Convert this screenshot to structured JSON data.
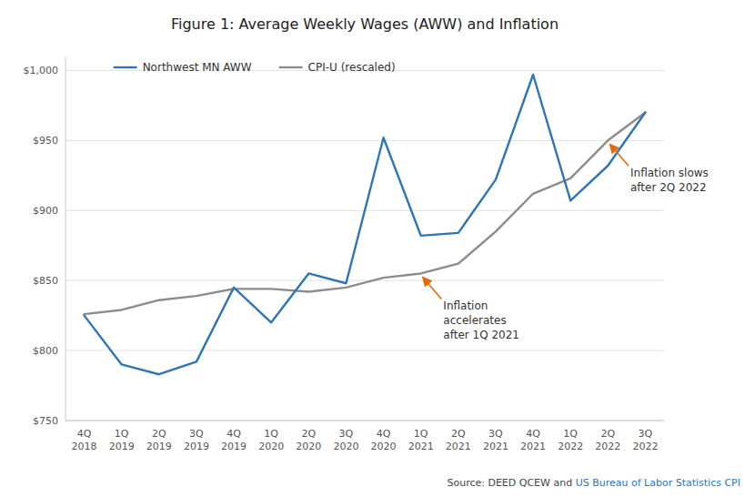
{
  "chart_data": {
    "type": "line",
    "title": "Figure 1: Average Weekly Wages (AWW) and Inflation",
    "categories": [
      "4Q\n2018",
      "1Q\n2019",
      "2Q\n2019",
      "3Q\n2019",
      "4Q\n2019",
      "1Q\n2020",
      "2Q\n2020",
      "3Q\n2020",
      "4Q\n2020",
      "1Q\n2021",
      "2Q\n2021",
      "3Q\n2021",
      "4Q\n2021",
      "1Q\n2022",
      "2Q\n2022",
      "3Q\n2022"
    ],
    "series": [
      {
        "name": "Northwest MN AWW",
        "color": "#2E75B6",
        "values": [
          825,
          790,
          783,
          792,
          845,
          820,
          855,
          848,
          952,
          882,
          884,
          922,
          997,
          907,
          932,
          970
        ]
      },
      {
        "name": "CPI-U (rescaled)",
        "color": "#8C8C8C",
        "values": [
          826,
          829,
          836,
          839,
          844,
          844,
          842,
          845,
          852,
          855,
          862,
          885,
          912,
          923,
          950,
          970
        ]
      }
    ],
    "ylim": [
      750,
      1010
    ],
    "yticks": [
      {
        "value": 750,
        "label": "$750"
      },
      {
        "value": 800,
        "label": "$800"
      },
      {
        "value": 850,
        "label": "$850"
      },
      {
        "value": 900,
        "label": "$900"
      },
      {
        "value": 950,
        "label": "$950"
      },
      {
        "value": 1000,
        "label": "$1,000"
      }
    ],
    "grid": true,
    "legend": "upper-left",
    "annotations": [
      {
        "text": "Inflation\naccelerates\nafter 1Q 2021",
        "x": "1Q\n2021",
        "y": 855,
        "color": "#E26B0A"
      },
      {
        "text": "Inflation slows\nafter 2Q 2022",
        "x": "2Q\n2022",
        "y": 950,
        "color": "#E26B0A"
      }
    ],
    "source": "Source: DEED QCEW and ",
    "source_link": "US Bureau of Labor Statistics CPI",
    "source_link_color": "#2E75B6"
  }
}
